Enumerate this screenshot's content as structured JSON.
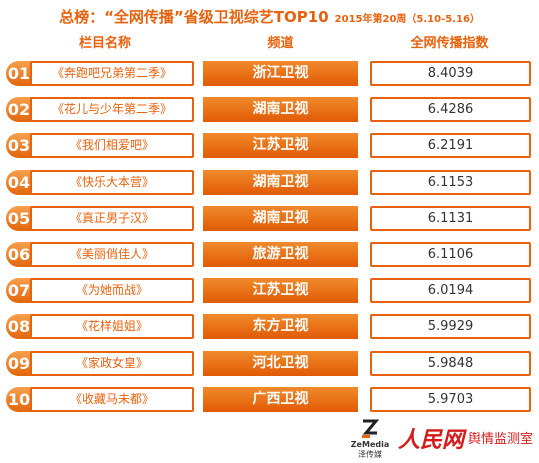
{
  "title": {
    "main": "总榜：“全网传播”省级卫视综艺TOP10",
    "sub": "2015年第20周（5.10-5.16）"
  },
  "headers": {
    "name": "栏目名称",
    "channel": "频道",
    "index": "全网传播指数"
  },
  "rows": [
    {
      "rank": "01",
      "name": "《奔跑吧兄弟第二季》",
      "channel": "浙江卫视",
      "index": "8.4039"
    },
    {
      "rank": "02",
      "name": "《花儿与少年第二季》",
      "channel": "湖南卫视",
      "index": "6.4286"
    },
    {
      "rank": "03",
      "name": "《我们相爱吧》",
      "channel": "江苏卫视",
      "index": "6.2191"
    },
    {
      "rank": "04",
      "name": "《快乐大本营》",
      "channel": "湖南卫视",
      "index": "6.1153"
    },
    {
      "rank": "05",
      "name": "《真正男子汉》",
      "channel": "湖南卫视",
      "index": "6.1131"
    },
    {
      "rank": "06",
      "name": "《美丽俏佳人》",
      "channel": "旅游卫视",
      "index": "6.1106"
    },
    {
      "rank": "07",
      "name": "《为她而战》",
      "channel": "江苏卫视",
      "index": "6.0194"
    },
    {
      "rank": "08",
      "name": "《花样姐姐》",
      "channel": "东方卫视",
      "index": "5.9929"
    },
    {
      "rank": "09",
      "name": "《家政女皇》",
      "channel": "河北卫视",
      "index": "5.9848"
    },
    {
      "rank": "10",
      "name": "《收藏马未都》",
      "channel": "广西卫视",
      "index": "5.9703"
    }
  ],
  "footer": {
    "zemedia_text": "ZeMedia",
    "zemedia_cn": "泽传媒",
    "rmw_logo": "人民网",
    "rmw_lab": "舆情监测室"
  },
  "colors": {
    "accent": "#e8620d",
    "logo_red": "#d41a1a"
  }
}
